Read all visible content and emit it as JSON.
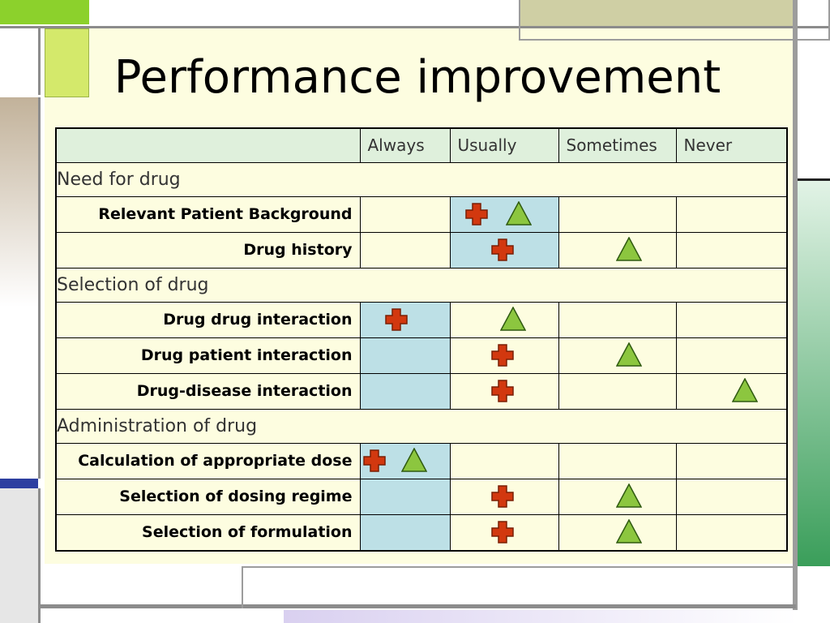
{
  "title": "Performance improvement",
  "columns": [
    "Always",
    "Usually",
    "Sometimes",
    "Never"
  ],
  "legend_marks": {
    "cross_color": "#d2380f",
    "triangle_color": "#8cc63f",
    "highlight_color": "#bde0e6"
  },
  "sections": [
    {
      "name": "Need for drug",
      "rows": [
        {
          "label": "Relevant Patient Background",
          "highlight": 1,
          "cross": 1,
          "triangle": 1
        },
        {
          "label": "Drug history",
          "highlight": 1,
          "cross": 1,
          "triangle": 2
        }
      ]
    },
    {
      "name": "Selection of drug",
      "rows": [
        {
          "label": "Drug drug interaction",
          "highlight": 0,
          "cross": 0,
          "triangle": 1
        },
        {
          "label": "Drug patient interaction",
          "highlight": 0,
          "cross": 1,
          "triangle": 2
        },
        {
          "label": "Drug-disease interaction",
          "highlight": 0,
          "cross": 1,
          "triangle": 3
        }
      ]
    },
    {
      "name": "Administration of drug",
      "rows": [
        {
          "label": "Calculation of appropriate dose",
          "highlight": 0,
          "cross": 0,
          "triangle": 0
        },
        {
          "label": "Selection of dosing regime",
          "highlight": 0,
          "cross": 1,
          "triangle": 2
        },
        {
          "label": "Selection of formulation",
          "highlight": 0,
          "cross": 1,
          "triangle": 2
        }
      ]
    }
  ]
}
